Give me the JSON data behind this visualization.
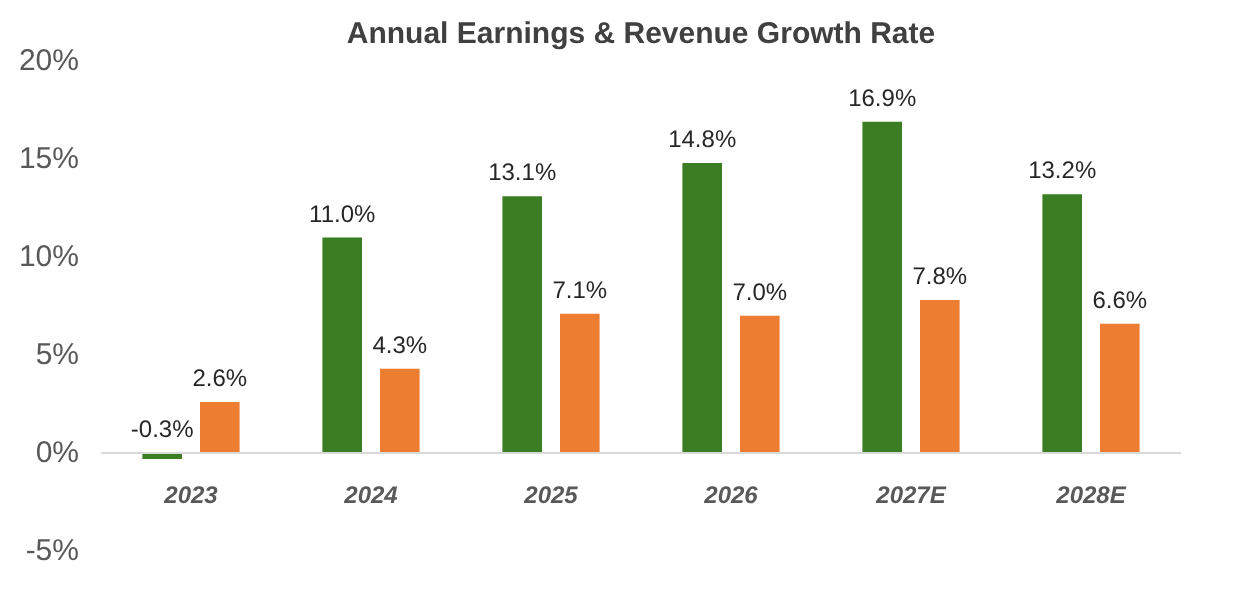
{
  "chart_data": {
    "type": "bar",
    "title": "Annual Earnings & Revenue Growth Rate",
    "categories": [
      "2023",
      "2024",
      "2025",
      "2026",
      "2027E",
      "2028E"
    ],
    "series": [
      {
        "color": "#3b7d23",
        "values": [
          -0.3,
          11.0,
          13.1,
          14.8,
          16.9,
          13.2
        ],
        "value_labels": [
          "-0.3%",
          "11.0%",
          "13.1%",
          "14.8%",
          "16.9%",
          "13.2%"
        ]
      },
      {
        "color": "#ed7d31",
        "values": [
          2.6,
          4.3,
          7.1,
          7.0,
          7.8,
          6.6
        ],
        "value_labels": [
          "2.6%",
          "4.3%",
          "7.1%",
          "7.0%",
          "7.8%",
          "6.6%"
        ]
      }
    ],
    "ylim": [
      -5,
      20
    ],
    "yticks": [
      {
        "value": -5,
        "label": "-5%"
      },
      {
        "value": 0,
        "label": "0%"
      },
      {
        "value": 5,
        "label": "5%"
      },
      {
        "value": 10,
        "label": "10%"
      },
      {
        "value": 15,
        "label": "15%"
      },
      {
        "value": 20,
        "label": "20%"
      }
    ],
    "grid": false
  }
}
